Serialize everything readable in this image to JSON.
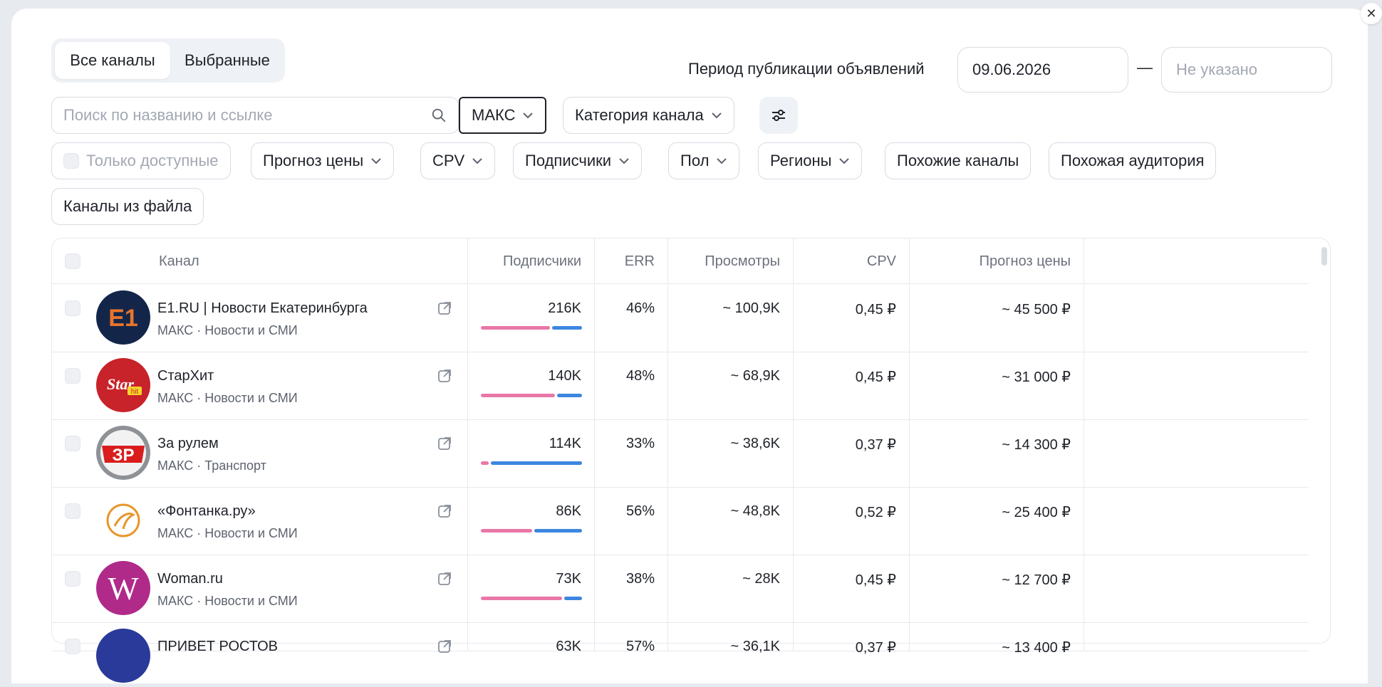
{
  "tabs": [
    {
      "label": "Все каналы",
      "active": true
    },
    {
      "label": "Выбранные",
      "active": false
    }
  ],
  "period": {
    "label": "Период публикации объявлений",
    "from": "09.06.2026",
    "to_placeholder": "Не указано",
    "dash": "—"
  },
  "search": {
    "placeholder": "Поиск по названию и ссылке"
  },
  "filters_row1": {
    "platform": "МАКС",
    "category": "Категория канала"
  },
  "filters_row2": {
    "only_available": "Только доступные",
    "price_forecast": "Прогноз цены",
    "cpv": "CPV",
    "subscribers": "Подписчики",
    "gender": "Пол",
    "regions": "Регионы",
    "similar_channels": "Похожие каналы",
    "similar_audience": "Похожая аудитория",
    "from_file": "Каналы из файла"
  },
  "table": {
    "columns": {
      "channel": "Канал",
      "subscribers": "Подписчики",
      "err": "ERR",
      "views": "Просмотры",
      "cpv": "CPV",
      "price": "Прогноз цены"
    },
    "rows": [
      {
        "name": "E1.RU | Новости Екатеринбурга",
        "meta": "МАКС · Новости и СМИ",
        "subs": "216K",
        "gender_female_share": 0.7,
        "err": "46%",
        "views": "~ 100,9K",
        "cpv": "0,45 ₽",
        "price": "~ 45 500 ₽",
        "avatar": "e1"
      },
      {
        "name": "СтарХит",
        "meta": "МАКС · Новости и СМИ",
        "subs": "140K",
        "gender_female_share": 0.75,
        "err": "48%",
        "views": "~ 68,9K",
        "cpv": "0,45 ₽",
        "price": "~ 31 000 ₽",
        "avatar": "starhit"
      },
      {
        "name": "За рулем",
        "meta": "МАКС · Транспорт",
        "subs": "114K",
        "gender_female_share": 0.08,
        "err": "33%",
        "views": "~ 38,6K",
        "cpv": "0,37 ₽",
        "price": "~ 14 300 ₽",
        "avatar": "zr"
      },
      {
        "name": "«Фонтанка.ру»",
        "meta": "МАКС · Новости и СМИ",
        "subs": "86K",
        "gender_female_share": 0.52,
        "err": "56%",
        "views": "~ 48,8K",
        "cpv": "0,52 ₽",
        "price": "~ 25 400 ₽",
        "avatar": "fontanka"
      },
      {
        "name": "Woman.ru",
        "meta": "МАКС · Новости и СМИ",
        "subs": "73K",
        "gender_female_share": 0.82,
        "err": "38%",
        "views": "~ 28K",
        "cpv": "0,45 ₽",
        "price": "~ 12 700 ₽",
        "avatar": "woman"
      }
    ],
    "partial_row": {
      "name": "ПРИВЕТ РОСТОВ",
      "subs": "63K",
      "err": "57%",
      "views": "~ 36,1K",
      "cpv": "0,37 ₽",
      "price": "~ 13 400 ₽"
    }
  },
  "colors": {
    "pink": "#e977a8",
    "blue": "#3d86e0",
    "text": "#1f2229",
    "muted": "#6b717c"
  }
}
